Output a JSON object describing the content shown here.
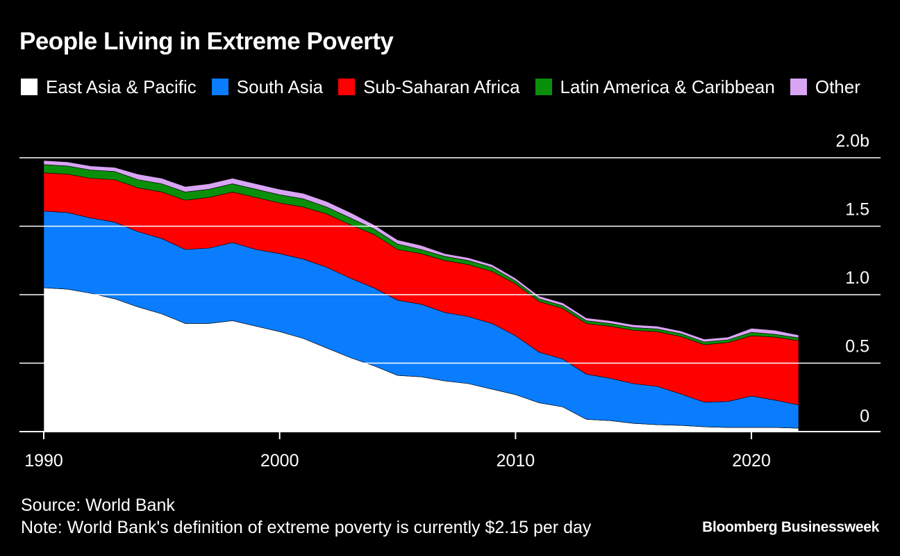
{
  "colors": {
    "background": "#000000",
    "text": "#ffffff",
    "gridline": "#ffffff"
  },
  "footer": {
    "source": "Source: World Bank",
    "note": "Note: World Bank's definition of extreme poverty is currently $2.15 per day",
    "brand": "Bloomberg Businessweek"
  },
  "chart_data": {
    "type": "area",
    "stacked": true,
    "title": "People Living in Extreme Poverty",
    "xlabel": "",
    "ylabel": "",
    "x_range": [
      1990,
      2025
    ],
    "x_ticks": [
      1990,
      2000,
      2010,
      2020
    ],
    "x_tick_labels": [
      "1990",
      "2000",
      "2010",
      "2020"
    ],
    "ylim": [
      0,
      2.0
    ],
    "y_ticks": [
      0,
      0.5,
      1.0,
      1.5,
      2.0
    ],
    "y_tick_labels": [
      "0",
      "0.5",
      "1.0",
      "1.5",
      "2.0b"
    ],
    "y_axis_position": "right",
    "grid": true,
    "legend_position": "top-left",
    "x": [
      1990,
      1991,
      1992,
      1993,
      1994,
      1995,
      1996,
      1997,
      1998,
      1999,
      2000,
      2001,
      2002,
      2003,
      2004,
      2005,
      2006,
      2007,
      2008,
      2009,
      2010,
      2011,
      2012,
      2013,
      2014,
      2015,
      2016,
      2017,
      2018,
      2019,
      2020,
      2021,
      2022
    ],
    "series": [
      {
        "name": "East Asia & Pacific",
        "color": "#ffffff",
        "values": [
          1.05,
          1.04,
          1.01,
          0.97,
          0.91,
          0.86,
          0.79,
          0.79,
          0.81,
          0.77,
          0.73,
          0.68,
          0.61,
          0.54,
          0.48,
          0.41,
          0.4,
          0.37,
          0.35,
          0.31,
          0.27,
          0.21,
          0.18,
          0.09,
          0.08,
          0.06,
          0.05,
          0.045,
          0.035,
          0.03,
          0.03,
          0.03,
          0.025
        ]
      },
      {
        "name": "South Asia",
        "color": "#0a7dff",
        "values": [
          0.56,
          0.56,
          0.55,
          0.56,
          0.55,
          0.55,
          0.54,
          0.55,
          0.57,
          0.56,
          0.57,
          0.58,
          0.59,
          0.58,
          0.57,
          0.55,
          0.53,
          0.5,
          0.49,
          0.48,
          0.43,
          0.37,
          0.35,
          0.33,
          0.31,
          0.29,
          0.28,
          0.23,
          0.18,
          0.19,
          0.23,
          0.2,
          0.17
        ]
      },
      {
        "name": "Sub-Saharan Africa",
        "color": "#ff0000",
        "values": [
          0.28,
          0.28,
          0.29,
          0.31,
          0.32,
          0.34,
          0.36,
          0.37,
          0.37,
          0.38,
          0.37,
          0.38,
          0.39,
          0.39,
          0.39,
          0.37,
          0.37,
          0.38,
          0.38,
          0.38,
          0.38,
          0.37,
          0.37,
          0.37,
          0.38,
          0.39,
          0.4,
          0.42,
          0.42,
          0.43,
          0.44,
          0.46,
          0.47
        ]
      },
      {
        "name": "Latin America & Caribbean",
        "color": "#0a8f0a",
        "values": [
          0.06,
          0.06,
          0.06,
          0.06,
          0.06,
          0.06,
          0.06,
          0.06,
          0.06,
          0.06,
          0.06,
          0.06,
          0.05,
          0.05,
          0.04,
          0.04,
          0.03,
          0.03,
          0.03,
          0.03,
          0.02,
          0.02,
          0.02,
          0.02,
          0.02,
          0.02,
          0.02,
          0.02,
          0.02,
          0.02,
          0.025,
          0.02,
          0.02
        ]
      },
      {
        "name": "Other",
        "color": "#d8a4f4",
        "values": [
          0.03,
          0.03,
          0.03,
          0.03,
          0.04,
          0.04,
          0.04,
          0.04,
          0.04,
          0.04,
          0.04,
          0.04,
          0.04,
          0.04,
          0.03,
          0.03,
          0.03,
          0.02,
          0.02,
          0.02,
          0.02,
          0.02,
          0.02,
          0.02,
          0.02,
          0.02,
          0.02,
          0.02,
          0.02,
          0.02,
          0.03,
          0.03,
          0.02
        ]
      }
    ]
  }
}
